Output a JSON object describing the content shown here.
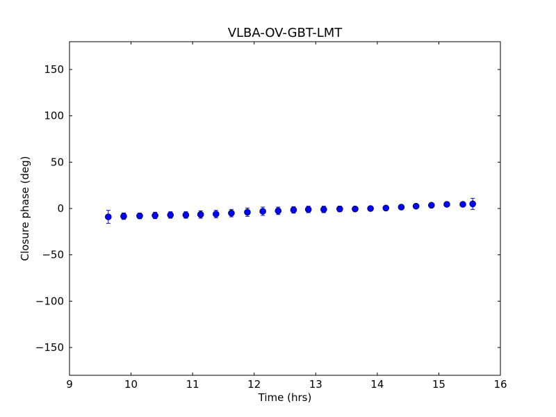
{
  "chart_data": {
    "type": "scatter",
    "title": "VLBA-OV-GBT-LMT",
    "xlabel": "Time (hrs)",
    "ylabel": "Closure phase (deg)",
    "xlim": [
      9,
      16
    ],
    "ylim": [
      -180,
      180
    ],
    "xticks": [
      9,
      10,
      11,
      12,
      13,
      14,
      15,
      16
    ],
    "xtick_labels": [
      "9",
      "10",
      "11",
      "12",
      "13",
      "14",
      "15",
      "16"
    ],
    "yticks": [
      -150,
      -100,
      -50,
      0,
      50,
      100,
      150
    ],
    "ytick_labels": [
      "−150",
      "−100",
      "−50",
      "0",
      "50",
      "100",
      "150"
    ],
    "grid": false,
    "marker_color": "#0000ff",
    "series": [
      {
        "name": "closure phase",
        "x": [
          9.63,
          9.88,
          10.14,
          10.39,
          10.64,
          10.89,
          11.13,
          11.38,
          11.63,
          11.89,
          12.14,
          12.39,
          12.64,
          12.88,
          13.13,
          13.39,
          13.64,
          13.89,
          14.14,
          14.39,
          14.63,
          14.88,
          15.13,
          15.39,
          15.55
        ],
        "y": [
          -9,
          -8.3,
          -8,
          -7.5,
          -7,
          -7,
          -6.5,
          -6,
          -5,
          -4,
          -3,
          -2.5,
          -1.5,
          -1,
          -1,
          -0.5,
          -0.5,
          0,
          0.5,
          1.5,
          2.5,
          3.5,
          4.5,
          4.5,
          5
        ],
        "yerr": [
          7,
          3.5,
          3,
          3.5,
          3.5,
          3.5,
          4,
          4,
          4,
          4.5,
          4.5,
          4,
          3.5,
          3.5,
          3.5,
          3,
          2.5,
          2,
          2,
          2,
          2,
          2,
          2,
          2,
          6
        ]
      }
    ]
  }
}
